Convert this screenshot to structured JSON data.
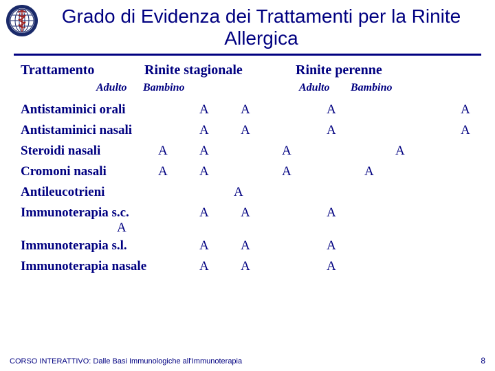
{
  "title": "Grado di Evidenza dei Trattamenti per la Rinite Allergica",
  "headers": {
    "treatment": "Trattamento",
    "seasonal": "Rinite stagionale",
    "perennial": "Rinite perenne"
  },
  "subheaders": {
    "adult": "Adulto",
    "child": "Bambino"
  },
  "rows": [
    {
      "label": "Antistaminici orali",
      "cells": {
        "c2": "A",
        "c4": "A",
        "c6": "A",
        "c9": "A"
      }
    },
    {
      "label": "Antistaminici nasali",
      "cells": {
        "c2": "A",
        "c4": "A",
        "c6": "A",
        "c9": "A"
      }
    },
    {
      "label": "Steroidi nasali",
      "cells": {
        "c1": "A",
        "c2": "A",
        "c5": "A",
        "c8": "A"
      }
    },
    {
      "label": "Cromoni nasali",
      "cells": {
        "c1": "A",
        "c2": "A",
        "c5": "A",
        "c7": "A"
      }
    },
    {
      "label": "Antileucotrieni",
      "cells": {
        "cA": "A"
      }
    },
    {
      "label": "Immunoterapia s.c.",
      "second": "A",
      "tall": true,
      "cells": {
        "c2": "A",
        "c4": "A",
        "c6": "A"
      }
    },
    {
      "label": "Immunoterapia s.l.",
      "cells": {
        "c2": "A",
        "c4": "A",
        "c6": "A"
      }
    },
    {
      "label": "Immunoterapia nasale",
      "cells": {
        "c2": "A",
        "c4": "A",
        "c6": "A"
      }
    }
  ],
  "footer": {
    "text": "CORSO INTERATTIVO: Dalle Basi Immunologiche all'Immunoterapia",
    "page": "8"
  },
  "colors": {
    "text": "#000080",
    "background": "#ffffff",
    "rule": "#000080"
  },
  "logo": {
    "ring": "#1a2a6a",
    "inner_bg": "#ffffff",
    "globe_lines": "#1a2a6a",
    "caduceus": "#9b1b1b"
  }
}
